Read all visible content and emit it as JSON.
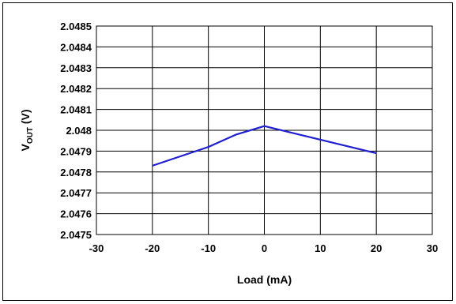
{
  "chart_data": {
    "type": "line",
    "title": "",
    "xlabel": "Load (mA)",
    "ylabel_main": "V",
    "ylabel_sub": "OUT",
    "ylabel_unit": " (V)",
    "xlim": [
      -30,
      30
    ],
    "ylim": [
      2.0475,
      2.0485
    ],
    "xticks": [
      -30,
      -20,
      -10,
      0,
      10,
      20,
      30
    ],
    "xtick_labels": [
      "-30",
      "-20",
      "-10",
      "0",
      "10",
      "20",
      "30"
    ],
    "yticks": [
      2.0475,
      2.0476,
      2.0477,
      2.0478,
      2.0479,
      2.048,
      2.0481,
      2.0482,
      2.0483,
      2.0484,
      2.0485
    ],
    "ytick_labels": [
      "2.0475",
      "2.0476",
      "2.0477",
      "2.0478",
      "2.0479",
      "2.048",
      "2.0481",
      "2.0482",
      "2.0483",
      "2.0484",
      "2.0485"
    ],
    "grid": true,
    "series": [
      {
        "color": "#1f1fd0",
        "x": [
          -20,
          -10,
          -5,
          0,
          20
        ],
        "y": [
          2.04783,
          2.04792,
          2.04798,
          2.04802,
          2.04789
        ]
      }
    ]
  }
}
